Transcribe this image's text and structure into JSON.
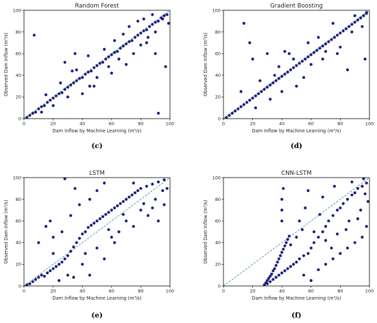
{
  "chart_data": [
    {
      "type": "scatter",
      "title": "Random Forest",
      "caption": "(c)",
      "xlabel": "Dam Inflow by Machine Learning (m³/s)",
      "ylabel": "Observed Dam Inflow (m³/s)",
      "xlim": [
        0,
        100
      ],
      "ylim": [
        0,
        100
      ],
      "xticks": [
        "0",
        "20",
        "40",
        "60",
        "80",
        "100"
      ],
      "yticks": [
        "0",
        "20",
        "40",
        "60",
        "80",
        "100"
      ],
      "reference_line": "y = x (dashed)",
      "color": "#1b1f7a",
      "points": [
        [
          2,
          1
        ],
        [
          4,
          3
        ],
        [
          6,
          5
        ],
        [
          8,
          6
        ],
        [
          10,
          9
        ],
        [
          12,
          11
        ],
        [
          14,
          12
        ],
        [
          16,
          15
        ],
        [
          18,
          17
        ],
        [
          20,
          19
        ],
        [
          22,
          21
        ],
        [
          24,
          23
        ],
        [
          26,
          24
        ],
        [
          28,
          27
        ],
        [
          30,
          29
        ],
        [
          32,
          31
        ],
        [
          34,
          33
        ],
        [
          36,
          35
        ],
        [
          38,
          37
        ],
        [
          40,
          38
        ],
        [
          42,
          41
        ],
        [
          44,
          43
        ],
        [
          46,
          44
        ],
        [
          48,
          47
        ],
        [
          50,
          49
        ],
        [
          52,
          51
        ],
        [
          54,
          52
        ],
        [
          56,
          55
        ],
        [
          58,
          57
        ],
        [
          60,
          59
        ],
        [
          62,
          61
        ],
        [
          64,
          62
        ],
        [
          66,
          65
        ],
        [
          68,
          67
        ],
        [
          70,
          69
        ],
        [
          72,
          71
        ],
        [
          74,
          72
        ],
        [
          76,
          75
        ],
        [
          78,
          77
        ],
        [
          80,
          79
        ],
        [
          82,
          81
        ],
        [
          84,
          82
        ],
        [
          86,
          85
        ],
        [
          88,
          87
        ],
        [
          90,
          89
        ],
        [
          92,
          90
        ],
        [
          94,
          93
        ],
        [
          96,
          95
        ],
        [
          98,
          96
        ],
        [
          7,
          77
        ],
        [
          28,
          52
        ],
        [
          35,
          60
        ],
        [
          48,
          30
        ],
        [
          60,
          42
        ],
        [
          70,
          50
        ],
        [
          75,
          60
        ],
        [
          80,
          68
        ],
        [
          85,
          75
        ],
        [
          90,
          80
        ],
        [
          95,
          92
        ],
        [
          92,
          5
        ],
        [
          97,
          48
        ],
        [
          62,
          72
        ],
        [
          55,
          64
        ],
        [
          44,
          58
        ],
        [
          40,
          23
        ],
        [
          33,
          44
        ],
        [
          50,
          38
        ],
        [
          65,
          55
        ],
        [
          72,
          85
        ],
        [
          78,
          90
        ],
        [
          88,
          96
        ],
        [
          99,
          88
        ],
        [
          25,
          33
        ],
        [
          30,
          20
        ],
        [
          15,
          22
        ],
        [
          12,
          6
        ],
        [
          20,
          12
        ],
        [
          36,
          45
        ],
        [
          45,
          30
        ],
        [
          58,
          48
        ],
        [
          68,
          78
        ],
        [
          84,
          70
        ],
        [
          90,
          60
        ],
        [
          82,
          92
        ]
      ]
    },
    {
      "type": "scatter",
      "title": "Gradient Boosting",
      "caption": "(d)",
      "xlabel": "Dam Inflow by Machine Learning (m³/s)",
      "ylabel": "Observed Dam Inflow (m³/s)",
      "xlim": [
        0,
        100
      ],
      "ylim": [
        0,
        100
      ],
      "xticks": [
        "0",
        "20",
        "40",
        "60",
        "80",
        "100"
      ],
      "yticks": [
        "0",
        "20",
        "40",
        "60",
        "80",
        "100"
      ],
      "reference_line": "y = x (dashed)",
      "color": "#1b1f7a",
      "points": [
        [
          2,
          1
        ],
        [
          4,
          3
        ],
        [
          6,
          5
        ],
        [
          8,
          7
        ],
        [
          10,
          9
        ],
        [
          12,
          11
        ],
        [
          14,
          13
        ],
        [
          16,
          15
        ],
        [
          18,
          17
        ],
        [
          20,
          19
        ],
        [
          22,
          21
        ],
        [
          24,
          23
        ],
        [
          26,
          25
        ],
        [
          28,
          27
        ],
        [
          30,
          29
        ],
        [
          32,
          31
        ],
        [
          34,
          33
        ],
        [
          36,
          35
        ],
        [
          38,
          37
        ],
        [
          40,
          39
        ],
        [
          42,
          41
        ],
        [
          44,
          43
        ],
        [
          46,
          45
        ],
        [
          48,
          47
        ],
        [
          50,
          49
        ],
        [
          52,
          51
        ],
        [
          54,
          53
        ],
        [
          56,
          55
        ],
        [
          58,
          57
        ],
        [
          60,
          59
        ],
        [
          62,
          61
        ],
        [
          64,
          63
        ],
        [
          66,
          65
        ],
        [
          68,
          67
        ],
        [
          70,
          69
        ],
        [
          72,
          71
        ],
        [
          74,
          73
        ],
        [
          76,
          75
        ],
        [
          78,
          77
        ],
        [
          80,
          79
        ],
        [
          82,
          81
        ],
        [
          84,
          83
        ],
        [
          86,
          85
        ],
        [
          88,
          87
        ],
        [
          90,
          89
        ],
        [
          92,
          91
        ],
        [
          94,
          93
        ],
        [
          96,
          95
        ],
        [
          98,
          97
        ],
        [
          14,
          88
        ],
        [
          18,
          70
        ],
        [
          20,
          55
        ],
        [
          30,
          60
        ],
        [
          35,
          40
        ],
        [
          40,
          25
        ],
        [
          45,
          60
        ],
        [
          55,
          38
        ],
        [
          60,
          50
        ],
        [
          70,
          62
        ],
        [
          80,
          66
        ],
        [
          88,
          80
        ],
        [
          95,
          85
        ],
        [
          97,
          55
        ],
        [
          98,
          98
        ],
        [
          85,
          45
        ],
        [
          65,
          75
        ],
        [
          50,
          30
        ],
        [
          38,
          48
        ],
        [
          25,
          35
        ],
        [
          12,
          25
        ],
        [
          22,
          10
        ],
        [
          42,
          62
        ],
        [
          58,
          70
        ],
        [
          75,
          88
        ],
        [
          90,
          95
        ],
        [
          32,
          18
        ],
        [
          48,
          55
        ],
        [
          68,
          55
        ],
        [
          78,
          60
        ]
      ]
    },
    {
      "type": "scatter",
      "title": "LSTM",
      "caption": "(e)",
      "xlabel": "Dam Inflow by Machine Learning (m³/s)",
      "ylabel": "Observed Dam Inflow (m³/s)",
      "xlim": [
        0,
        100
      ],
      "ylim": [
        0,
        100
      ],
      "xticks": [
        "0",
        "20",
        "40",
        "60",
        "80",
        "100"
      ],
      "yticks": [
        "0",
        "20",
        "40",
        "60",
        "80",
        "100"
      ],
      "reference_line": "y = x (dashed)",
      "color": "#1b1f7a",
      "points": [
        [
          2,
          1
        ],
        [
          4,
          2
        ],
        [
          6,
          4
        ],
        [
          8,
          6
        ],
        [
          10,
          8
        ],
        [
          12,
          10
        ],
        [
          14,
          9
        ],
        [
          16,
          12
        ],
        [
          18,
          14
        ],
        [
          20,
          16
        ],
        [
          22,
          18
        ],
        [
          24,
          20
        ],
        [
          26,
          22
        ],
        [
          28,
          25
        ],
        [
          30,
          28
        ],
        [
          32,
          32
        ],
        [
          34,
          36
        ],
        [
          36,
          40
        ],
        [
          38,
          44
        ],
        [
          40,
          48
        ],
        [
          42,
          50
        ],
        [
          44,
          54
        ],
        [
          46,
          56
        ],
        [
          48,
          58
        ],
        [
          50,
          60
        ],
        [
          52,
          62
        ],
        [
          54,
          64
        ],
        [
          56,
          66
        ],
        [
          58,
          68
        ],
        [
          60,
          70
        ],
        [
          62,
          72
        ],
        [
          64,
          74
        ],
        [
          66,
          76
        ],
        [
          68,
          78
        ],
        [
          70,
          80
        ],
        [
          72,
          82
        ],
        [
          74,
          84
        ],
        [
          76,
          86
        ],
        [
          78,
          88
        ],
        [
          80,
          90
        ],
        [
          84,
          92
        ],
        [
          88,
          94
        ],
        [
          92,
          96
        ],
        [
          96,
          98
        ],
        [
          10,
          40
        ],
        [
          15,
          55
        ],
        [
          18,
          60
        ],
        [
          20,
          30
        ],
        [
          24,
          5
        ],
        [
          30,
          10
        ],
        [
          32,
          65
        ],
        [
          38,
          75
        ],
        [
          40,
          20
        ],
        [
          45,
          80
        ],
        [
          50,
          35
        ],
        [
          55,
          25
        ],
        [
          60,
          45
        ],
        [
          65,
          50
        ],
        [
          70,
          60
        ],
        [
          75,
          55
        ],
        [
          80,
          70
        ],
        [
          85,
          65
        ],
        [
          90,
          80
        ],
        [
          95,
          88
        ],
        [
          98,
          90
        ],
        [
          28,
          99
        ],
        [
          35,
          90
        ],
        [
          55,
          95
        ],
        [
          75,
          95
        ],
        [
          92,
          60
        ],
        [
          62,
          40
        ],
        [
          50,
          88
        ],
        [
          45,
          10
        ],
        [
          20,
          45
        ],
        [
          26,
          50
        ],
        [
          34,
          8
        ],
        [
          42,
          30
        ],
        [
          58,
          52
        ],
        [
          68,
          66
        ],
        [
          82,
          76
        ],
        [
          88,
          72
        ],
        [
          96,
          75
        ]
      ]
    },
    {
      "type": "scatter",
      "title": "CNN-LSTM",
      "caption": "(f)",
      "xlabel": "Dam Inflow by Machine Learning (m³/s)",
      "ylabel": "Observed Dam Inflow (m³/s)",
      "xlim": [
        0,
        100
      ],
      "ylim": [
        0,
        100
      ],
      "xticks": [
        "0",
        "20",
        "40",
        "60",
        "80",
        "100"
      ],
      "yticks": [
        "0",
        "20",
        "40",
        "60",
        "80",
        "100"
      ],
      "reference_line": "y = x (dashed)",
      "color": "#1b1f7a",
      "points": [
        [
          28,
          1
        ],
        [
          29,
          3
        ],
        [
          30,
          5
        ],
        [
          31,
          7
        ],
        [
          32,
          9
        ],
        [
          33,
          11
        ],
        [
          34,
          14
        ],
        [
          35,
          16
        ],
        [
          36,
          19
        ],
        [
          37,
          22
        ],
        [
          38,
          25
        ],
        [
          39,
          28
        ],
        [
          40,
          31
        ],
        [
          41,
          34
        ],
        [
          42,
          37
        ],
        [
          43,
          40
        ],
        [
          44,
          43
        ],
        [
          45,
          46
        ],
        [
          30,
          2
        ],
        [
          32,
          4
        ],
        [
          34,
          6
        ],
        [
          36,
          8
        ],
        [
          38,
          10
        ],
        [
          40,
          12
        ],
        [
          42,
          14
        ],
        [
          44,
          16
        ],
        [
          46,
          18
        ],
        [
          48,
          20
        ],
        [
          50,
          22
        ],
        [
          52,
          25
        ],
        [
          55,
          28
        ],
        [
          58,
          30
        ],
        [
          60,
          35
        ],
        [
          62,
          40
        ],
        [
          65,
          45
        ],
        [
          68,
          50
        ],
        [
          70,
          55
        ],
        [
          72,
          60
        ],
        [
          75,
          65
        ],
        [
          78,
          70
        ],
        [
          80,
          72
        ],
        [
          82,
          76
        ],
        [
          85,
          80
        ],
        [
          88,
          84
        ],
        [
          90,
          86
        ],
        [
          92,
          90
        ],
        [
          95,
          92
        ],
        [
          98,
          95
        ],
        [
          40,
          60
        ],
        [
          40,
          70
        ],
        [
          40,
          80
        ],
        [
          41,
          90
        ],
        [
          55,
          10
        ],
        [
          60,
          5
        ],
        [
          65,
          15
        ],
        [
          70,
          20
        ],
        [
          75,
          25
        ],
        [
          80,
          30
        ],
        [
          85,
          35
        ],
        [
          90,
          40
        ],
        [
          95,
          45
        ],
        [
          98,
          55
        ],
        [
          52,
          60
        ],
        [
          56,
          72
        ],
        [
          62,
          50
        ],
        [
          70,
          42
        ],
        [
          78,
          48
        ],
        [
          86,
          60
        ],
        [
          94,
          70
        ],
        [
          99,
          78
        ],
        [
          58,
          88
        ],
        [
          68,
          82
        ],
        [
          76,
          92
        ],
        [
          88,
          96
        ],
        [
          96,
          99
        ],
        [
          46,
          38
        ],
        [
          50,
          45
        ],
        [
          54,
          52
        ],
        [
          66,
          66
        ],
        [
          74,
          35
        ],
        [
          84,
          52
        ],
        [
          92,
          62
        ],
        [
          97,
          85
        ]
      ]
    }
  ]
}
